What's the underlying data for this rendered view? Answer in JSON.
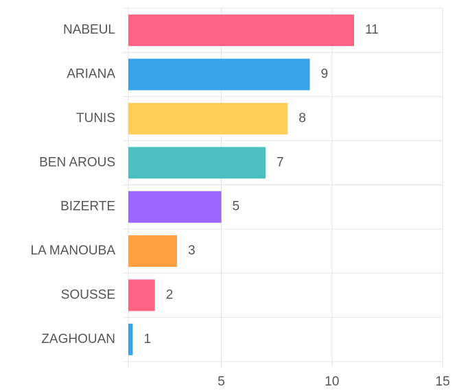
{
  "chart_data": {
    "type": "hbar",
    "categories": [
      "NABEUL",
      "ARIANA",
      "TUNIS",
      "BEN AROUS",
      "BIZERTE",
      "LA MANOUBA",
      "SOUSSE",
      "ZAGHOUAN"
    ],
    "values": [
      11,
      9,
      8,
      7,
      5,
      3,
      2,
      1
    ],
    "colors": [
      "#ff6384",
      "#36a2eb",
      "#ffce56",
      "#4bc0c0",
      "#9966ff",
      "#ff9f40",
      "#ff6384",
      "#36a2eb"
    ],
    "xlim": [
      0.8,
      15
    ],
    "xticks": [
      5,
      10,
      15
    ],
    "grid": true
  }
}
